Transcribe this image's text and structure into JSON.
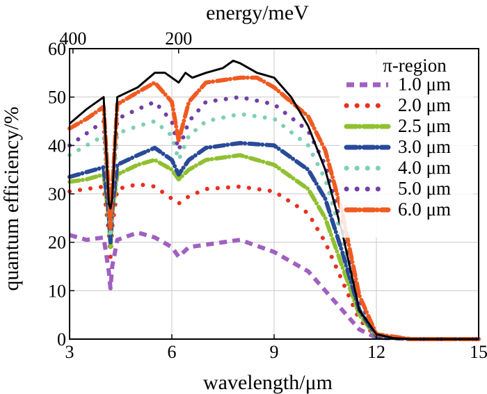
{
  "chart_data": {
    "type": "line",
    "title": "",
    "xlabel": "wavelength/μm",
    "ylabel": "quantum efficiency/%",
    "top_axis_label": "energy/meV",
    "top_ticks": [
      {
        "label": "400",
        "energy_meV": 400
      },
      {
        "label": "200",
        "energy_meV": 200
      }
    ],
    "xlim": [
      3,
      15
    ],
    "ylim": [
      0,
      60
    ],
    "xticks": [
      3,
      6,
      9,
      12,
      15
    ],
    "yticks": [
      0,
      10,
      20,
      30,
      40,
      50,
      60
    ],
    "grid": true,
    "legend_title": "π-region",
    "legend_position": "top-right",
    "series": [
      {
        "name": "1.0 μm",
        "color": "#a060c0",
        "style": "dashed",
        "x": [
          3.0,
          3.5,
          4.0,
          4.15,
          4.2,
          4.25,
          4.4,
          5.0,
          5.5,
          6.0,
          6.2,
          6.5,
          7.0,
          8.0,
          9.0,
          10.0,
          10.5,
          11.0,
          11.5,
          12.0,
          13.0,
          15.0
        ],
        "y": [
          21.5,
          20.5,
          21,
          14,
          10.5,
          15,
          20.5,
          22,
          21,
          19,
          17,
          19,
          19.5,
          20.5,
          18,
          14,
          10,
          6,
          2,
          0.3,
          0,
          0
        ]
      },
      {
        "name": "2.0 μm",
        "color": "#e83020",
        "style": "dotted",
        "x": [
          3.0,
          3.5,
          4.0,
          4.15,
          4.2,
          4.25,
          4.4,
          5.0,
          5.5,
          6.0,
          6.2,
          6.5,
          7.0,
          8.0,
          9.0,
          10.0,
          10.5,
          11.0,
          11.5,
          12.0,
          13.0,
          15.0
        ],
        "y": [
          30.5,
          31,
          31.5,
          22,
          17,
          23,
          31,
          32,
          31.5,
          29,
          28,
          29.5,
          31,
          31.5,
          30.5,
          26,
          20,
          12,
          4,
          0.5,
          0,
          0
        ]
      },
      {
        "name": "2.5 μm",
        "color": "#90c030",
        "style": "dashdot",
        "x": [
          3.0,
          3.5,
          4.0,
          4.15,
          4.2,
          4.25,
          4.4,
          5.0,
          5.5,
          6.0,
          6.2,
          6.5,
          7.0,
          8.0,
          9.0,
          10.0,
          10.5,
          11.0,
          11.5,
          12.0,
          13.0,
          15.0
        ],
        "y": [
          32.5,
          33,
          34,
          25,
          19,
          26,
          34,
          36,
          37,
          35,
          33,
          35,
          37,
          38,
          36,
          31,
          25,
          15,
          5,
          0.5,
          0,
          0
        ]
      },
      {
        "name": "3.0 μm",
        "color": "#284a98",
        "style": "dashdot",
        "x": [
          3.0,
          3.5,
          4.0,
          4.15,
          4.2,
          4.25,
          4.4,
          5.0,
          5.5,
          6.0,
          6.2,
          6.5,
          7.0,
          8.0,
          9.0,
          10.0,
          10.5,
          11.0,
          11.5,
          12.0,
          13.0,
          15.0
        ],
        "y": [
          33.5,
          34.5,
          35.5,
          26,
          20,
          27,
          36,
          38,
          39.5,
          37,
          34,
          37,
          39.5,
          40.5,
          40,
          35,
          29,
          18,
          6,
          0.6,
          0,
          0
        ]
      },
      {
        "name": "4.0 μm",
        "color": "#80d0b0",
        "style": "dotted",
        "x": [
          3.0,
          3.5,
          4.0,
          4.15,
          4.2,
          4.25,
          4.4,
          5.0,
          5.5,
          6.0,
          6.2,
          6.5,
          7.0,
          8.0,
          9.0,
          10.0,
          10.5,
          11.0,
          11.5,
          12.0,
          13.0,
          15.0
        ],
        "y": [
          38,
          40,
          42,
          28,
          21,
          29,
          42.5,
          44,
          45,
          42,
          37,
          42,
          45,
          46.5,
          45.5,
          40,
          33,
          21,
          7,
          0.7,
          0,
          0
        ]
      },
      {
        "name": "5.0 μm",
        "color": "#7040a8",
        "style": "dotted",
        "x": [
          3.0,
          3.5,
          4.0,
          4.15,
          4.2,
          4.25,
          4.4,
          5.0,
          5.5,
          6.0,
          6.2,
          6.5,
          7.0,
          8.0,
          9.0,
          10.0,
          10.5,
          11.0,
          11.5,
          12.0,
          13.0,
          15.0
        ],
        "y": [
          40,
          42.5,
          45,
          29,
          22,
          30,
          45.5,
          47.5,
          49,
          45,
          39,
          45,
          49,
          50,
          48.5,
          43,
          36,
          23,
          8,
          0.8,
          0,
          0
        ]
      },
      {
        "name": "6.0 μm",
        "color": "#f05a20",
        "style": "dashdot",
        "x": [
          3.0,
          3.5,
          4.0,
          4.15,
          4.2,
          4.25,
          4.4,
          5.0,
          5.5,
          6.0,
          6.2,
          6.5,
          7.0,
          8.0,
          8.5,
          9.0,
          10.0,
          10.5,
          11.0,
          11.5,
          12.0,
          13.0,
          15.0
        ],
        "y": [
          43.5,
          45.5,
          48,
          30,
          23,
          31,
          48.5,
          51,
          53,
          49,
          41,
          49,
          53,
          54,
          54,
          52,
          46,
          39,
          26,
          9,
          1,
          0,
          0
        ]
      },
      {
        "name": "",
        "color": "#000000",
        "style": "solid",
        "x": [
          3.0,
          3.5,
          4.0,
          4.15,
          4.2,
          4.25,
          4.4,
          5.0,
          5.5,
          5.8,
          6.0,
          6.2,
          6.4,
          6.6,
          7.0,
          7.5,
          7.8,
          8.0,
          8.5,
          9.0,
          9.5,
          10.0,
          10.5,
          11.0,
          11.5,
          12.0,
          12.5,
          13.0,
          15.0
        ],
        "y": [
          44.5,
          47.5,
          50,
          28,
          27,
          29,
          50,
          52,
          55,
          55,
          54,
          53,
          55,
          54,
          55,
          56,
          57.5,
          57,
          55,
          54,
          50,
          44,
          35,
          22,
          6,
          1,
          0.2,
          0,
          0
        ]
      }
    ]
  }
}
